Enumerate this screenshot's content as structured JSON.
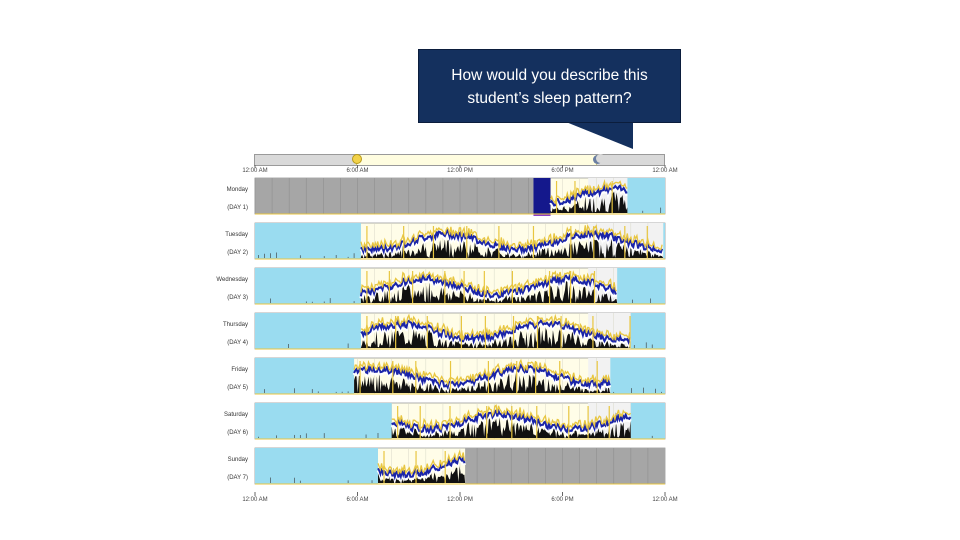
{
  "callout": {
    "line1": "How would you describe  this",
    "line2": "student’s sleep pattern?"
  },
  "timeline": {
    "ticks_top": [
      "12:00 AM",
      "6:00 AM",
      "12:00 PM",
      "6:00 PM",
      "12:00 AM"
    ],
    "ticks_bottom": [
      "12:00 AM",
      "6:00 AM",
      "12:00 PM",
      "6:00 PM",
      "12:00 AM"
    ],
    "icons": {
      "sunrise": "sun-icon",
      "sunset": "moon-icon"
    }
  },
  "days": [
    {
      "name": "Monday",
      "tag": "(DAY 1)"
    },
    {
      "name": "Tuesday",
      "tag": "(DAY 2)"
    },
    {
      "name": "Wednesday",
      "tag": "(DAY 3)"
    },
    {
      "name": "Thursday",
      "tag": "(DAY 4)"
    },
    {
      "name": "Friday",
      "tag": "(DAY 5)"
    },
    {
      "name": "Saturday",
      "tag": "(DAY 6)"
    },
    {
      "name": "Sunday",
      "tag": "(DAY 7)"
    }
  ],
  "colors": {
    "sleep": "#9adcf0",
    "no_data": "#a6a6a6",
    "wake": "#fffde8",
    "evening": "#f2f2f2",
    "activity_high": "#1a24a8",
    "activity_light": "#e8c640",
    "activity_base": "#111111",
    "callout_bg": "#14305e"
  },
  "chart_data": {
    "type": "actogram",
    "x_range_hours": [
      0,
      24
    ],
    "days": [
      {
        "no_data": [
          [
            0,
            16.3
          ]
        ],
        "sleep": [
          [
            21.8,
            24
          ]
        ],
        "activity": [
          [
            16.3,
            21.8
          ]
        ]
      },
      {
        "sleep": [
          [
            0,
            6.2
          ],
          [
            23.9,
            24
          ]
        ],
        "activity": [
          [
            6.2,
            23.9
          ]
        ]
      },
      {
        "sleep": [
          [
            0,
            6.2
          ],
          [
            21.2,
            24
          ]
        ],
        "activity": [
          [
            6.2,
            21.2
          ]
        ]
      },
      {
        "sleep": [
          [
            0,
            6.2
          ],
          [
            22.0,
            24
          ]
        ],
        "activity": [
          [
            6.2,
            22.0
          ]
        ]
      },
      {
        "sleep": [
          [
            0,
            5.8
          ],
          [
            20.8,
            24
          ]
        ],
        "activity": [
          [
            5.8,
            20.8
          ]
        ]
      },
      {
        "sleep": [
          [
            0,
            8.0
          ],
          [
            22.0,
            24
          ]
        ],
        "activity": [
          [
            8.0,
            22.0
          ]
        ]
      },
      {
        "sleep": [
          [
            0,
            7.2
          ]
        ],
        "activity": [
          [
            7.2,
            12.3
          ]
        ],
        "no_data": [
          [
            12.3,
            24
          ]
        ]
      }
    ]
  }
}
